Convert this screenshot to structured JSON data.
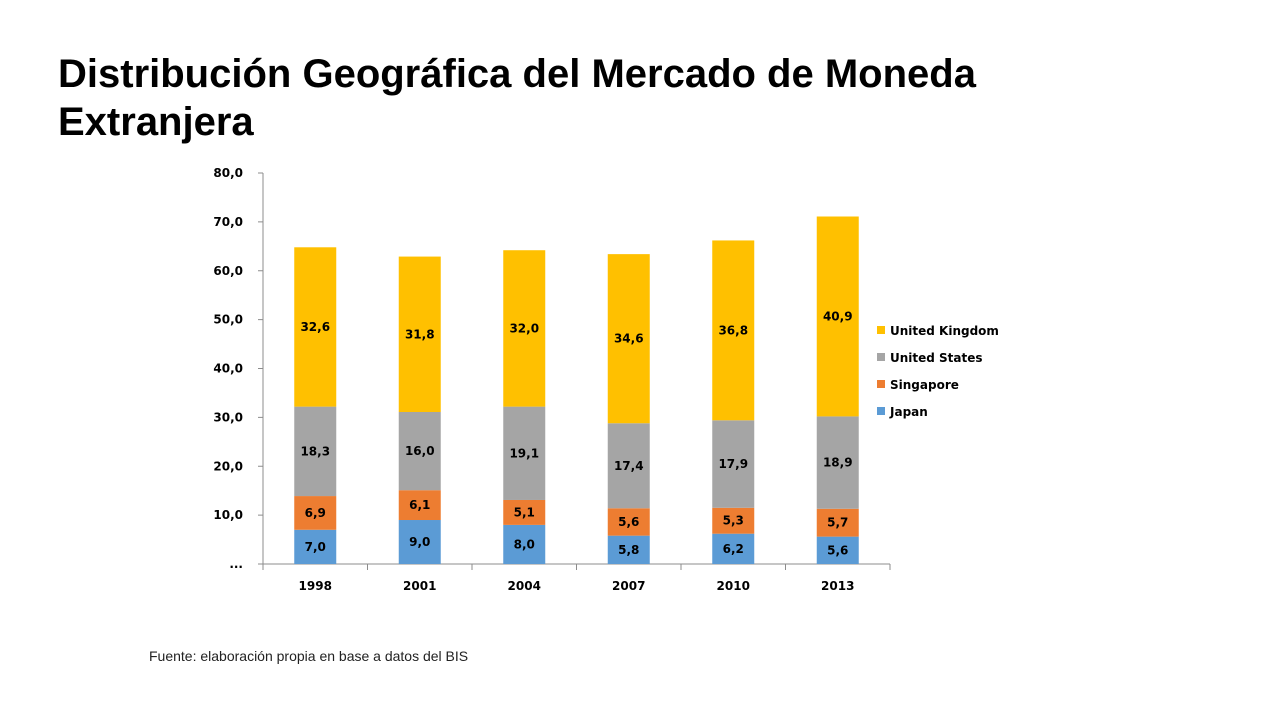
{
  "page": {
    "title": "Distribución Geográfica del Mercado de Moneda Extranjera",
    "source_note": "Fuente: elaboración propia en base a datos del BIS"
  },
  "chart_data": {
    "type": "bar",
    "stacked": true,
    "categories": [
      "1998",
      "2001",
      "2004",
      "2007",
      "2010",
      "2013"
    ],
    "series": [
      {
        "name": "Japan",
        "color": "#5b9bd5",
        "values": [
          7.0,
          9.0,
          8.0,
          5.8,
          6.2,
          5.6
        ],
        "labels": [
          "7,0",
          "9,0",
          "8,0",
          "5,8",
          "6,2",
          "5,6"
        ]
      },
      {
        "name": "Singapore",
        "color": "#ed7d31",
        "values": [
          6.9,
          6.1,
          5.1,
          5.6,
          5.3,
          5.7
        ],
        "labels": [
          "6,9",
          "6,1",
          "5,1",
          "5,6",
          "5,3",
          "5,7"
        ]
      },
      {
        "name": "United States",
        "color": "#a5a5a5",
        "values": [
          18.3,
          16.0,
          19.1,
          17.4,
          17.9,
          18.9
        ],
        "labels": [
          "18,3",
          "16,0",
          "19,1",
          "17,4",
          "17,9",
          "18,9"
        ]
      },
      {
        "name": "United Kingdom",
        "color": "#ffc000",
        "values": [
          32.6,
          31.8,
          32.0,
          34.6,
          36.8,
          40.9
        ],
        "labels": [
          "32,6",
          "31,8",
          "32,0",
          "34,6",
          "36,8",
          "40,9"
        ]
      }
    ],
    "y_ticks": [
      0,
      10,
      20,
      30,
      40,
      50,
      60,
      70,
      80
    ],
    "y_tick_labels": [
      "...",
      "10,0",
      "20,0",
      "30,0",
      "40,0",
      "50,0",
      "60,0",
      "70,0",
      "80,0"
    ],
    "ylim": [
      0,
      80
    ],
    "grid": false,
    "legend_position": "right",
    "legend_order": [
      "United Kingdom",
      "United States",
      "Singapore",
      "Japan"
    ]
  }
}
